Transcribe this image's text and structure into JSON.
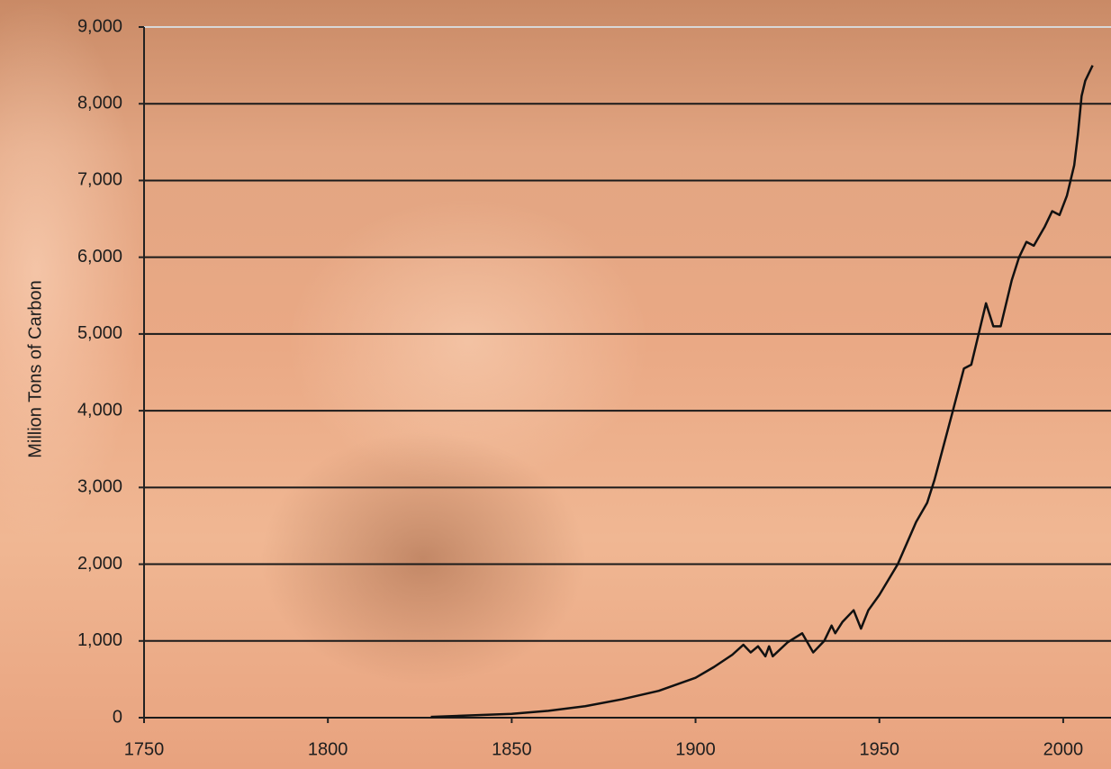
{
  "chart_data": {
    "type": "line",
    "y_label": "Million Tons of Carbon",
    "x": [
      1828,
      1850,
      1860,
      1870,
      1880,
      1890,
      1900,
      1905,
      1910,
      1913,
      1915,
      1917,
      1919,
      1920,
      1921,
      1925,
      1929,
      1932,
      1935,
      1937,
      1938,
      1940,
      1943,
      1945,
      1947,
      1950,
      1955,
      1960,
      1963,
      1965,
      1970,
      1973,
      1975,
      1977,
      1979,
      1981,
      1983,
      1986,
      1988,
      1990,
      1992,
      1995,
      1997,
      1999,
      2001,
      2003,
      2004,
      2005,
      2006,
      2008
    ],
    "series": [
      {
        "color": "#111111",
        "values": [
          10,
          50,
          90,
          150,
          240,
          350,
          520,
          660,
          820,
          950,
          850,
          930,
          800,
          930,
          800,
          980,
          1100,
          850,
          1000,
          1200,
          1100,
          1250,
          1400,
          1160,
          1400,
          1600,
          2000,
          2550,
          2800,
          3100,
          4000,
          4550,
          4600,
          5000,
          5400,
          5100,
          5100,
          5700,
          6000,
          6200,
          6150,
          6400,
          6600,
          6550,
          6800,
          7200,
          7600,
          8100,
          8300,
          8500
        ]
      }
    ],
    "xlim": [
      1750,
      2013
    ],
    "xticks": [
      1750,
      1800,
      1850,
      1900,
      1950,
      2000
    ],
    "ylim": [
      0,
      9000
    ],
    "yticks": [
      0,
      {
        "value": 1000,
        "label": "1,000"
      },
      {
        "value": 2000,
        "label": "2,000"
      },
      {
        "value": 3000,
        "label": "3,000"
      },
      {
        "value": 4000,
        "label": "4,000"
      },
      {
        "value": 5000,
        "label": "5,000"
      },
      {
        "value": 6000,
        "label": "6,000"
      },
      {
        "value": 7000,
        "label": "7,000"
      },
      {
        "value": 8000,
        "label": "8,000"
      },
      {
        "value": 9000,
        "label": "9,000"
      }
    ],
    "grid": true
  }
}
